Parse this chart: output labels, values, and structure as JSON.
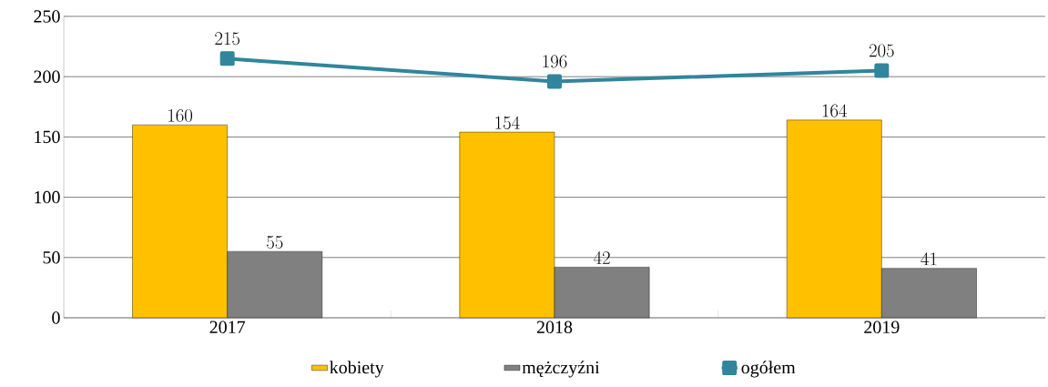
{
  "chart_data": {
    "type": "bar",
    "categories": [
      "2017",
      "2018",
      "2019"
    ],
    "series": [
      {
        "name": "kobiety",
        "color": "#ffc000",
        "values": [
          160,
          154,
          164
        ]
      },
      {
        "name": "mężczyźni",
        "color": "#808080",
        "values": [
          55,
          42,
          41
        ]
      },
      {
        "name": "ogółem",
        "color": "#31859c",
        "type": "line",
        "marker": "square",
        "values": [
          215,
          196,
          205
        ]
      }
    ],
    "ylim": [
      0,
      250
    ],
    "yticks": [
      0,
      50,
      100,
      150,
      200,
      250
    ],
    "grid": "y",
    "legend": "bottom",
    "data_labels": true
  }
}
